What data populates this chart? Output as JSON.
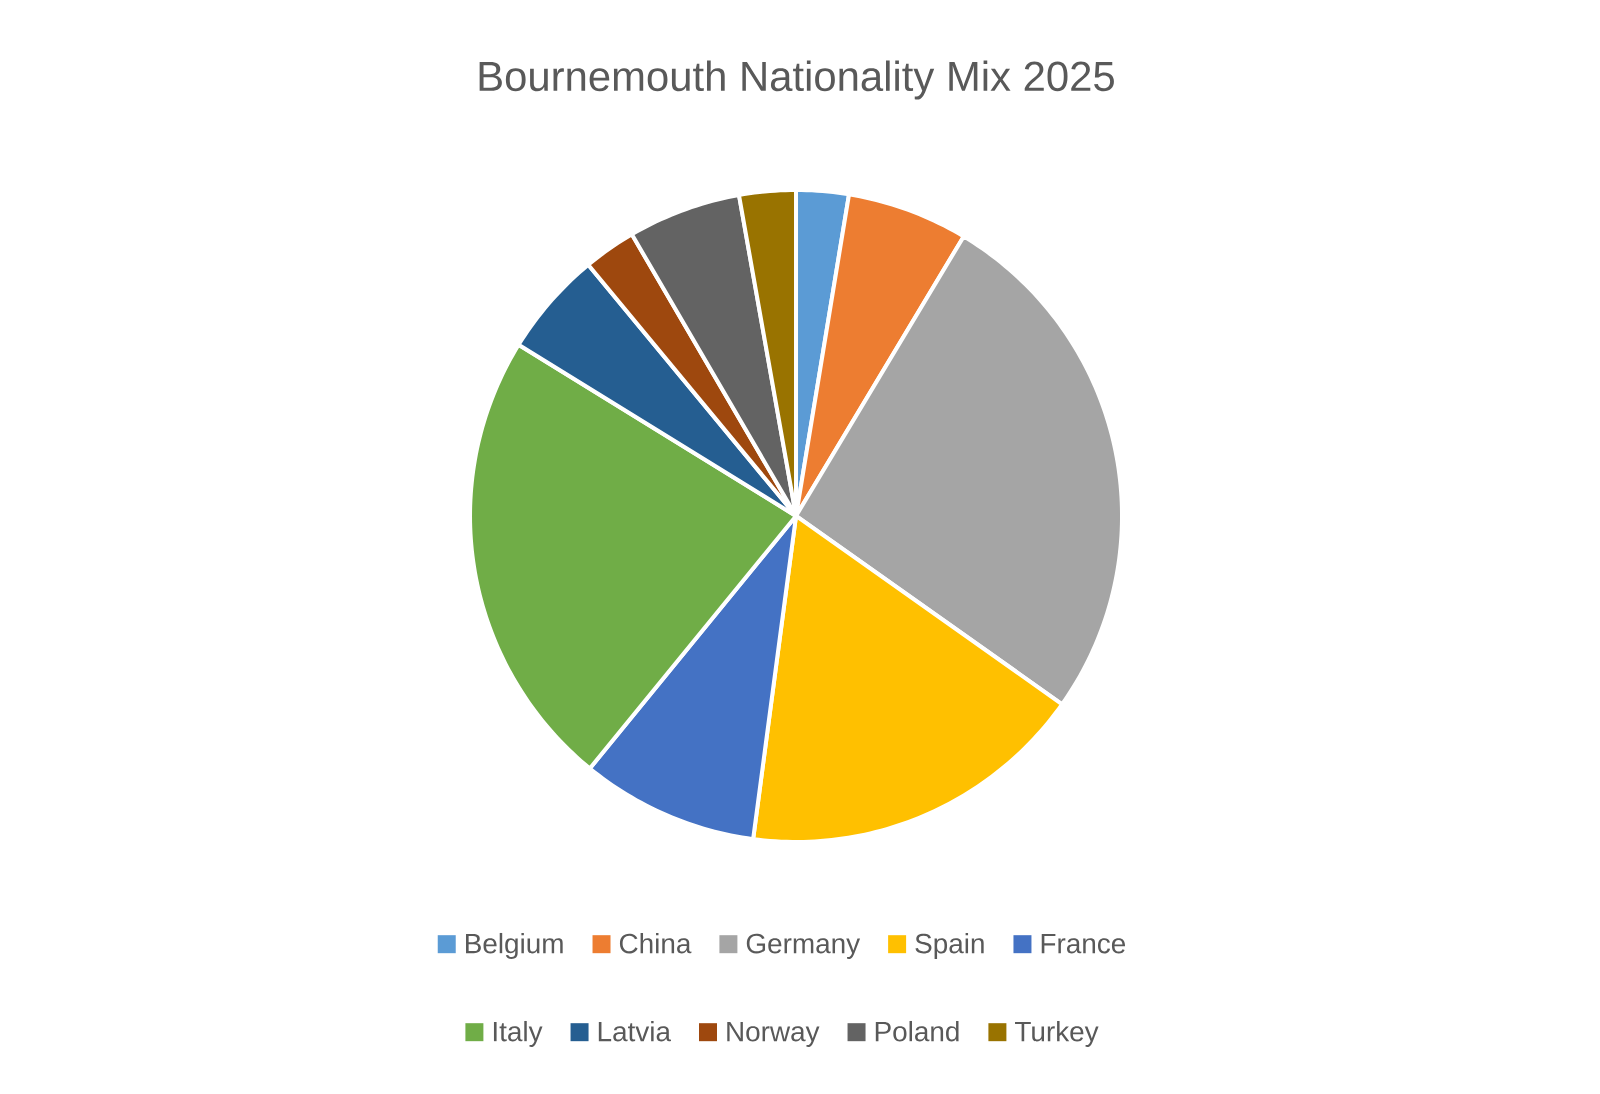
{
  "chart_data": {
    "type": "pie",
    "title": "Bournemouth Nationality Mix 2025",
    "categories": [
      "Belgium",
      "China",
      "Germany",
      "Spain",
      "France",
      "Italy",
      "Latvia",
      "Norway",
      "Poland",
      "Turkey"
    ],
    "values": [
      2.6,
      6.0,
      26.2,
      17.3,
      8.8,
      22.9,
      5.2,
      2.6,
      5.6,
      2.8
    ],
    "colors": [
      "#5b9bd5",
      "#ed7d31",
      "#a5a5a5",
      "#ffc000",
      "#4472c4",
      "#70ad47",
      "#255e91",
      "#9e480e",
      "#636363",
      "#997300"
    ],
    "legend": "bottom"
  }
}
